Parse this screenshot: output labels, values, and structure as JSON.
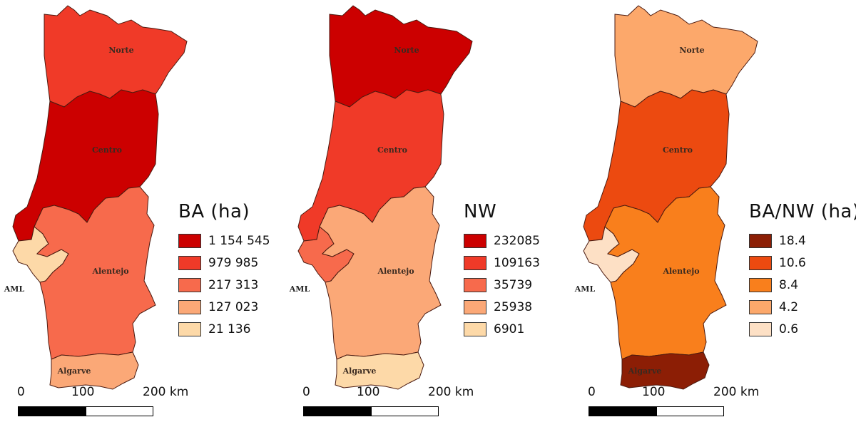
{
  "regions": {
    "norte": "Norte",
    "centro": "Centro",
    "alentejo": "Alentejo",
    "aml": "AML",
    "algarve": "Algarve"
  },
  "scale": {
    "tick0": "0",
    "tick1": "100",
    "tick2": "200 km"
  },
  "maps": [
    {
      "legend_title": "BA (ha)",
      "legend": [
        {
          "label": "1 154 545",
          "color": "#cc0000"
        },
        {
          "label": "979 985",
          "color": "#f03a28"
        },
        {
          "label": "217 313",
          "color": "#f76a4c"
        },
        {
          "label": "127 023",
          "color": "#fba877"
        },
        {
          "label": "21 136",
          "color": "#fdd9a8"
        }
      ],
      "fills": {
        "norte": "#f03a28",
        "centro": "#cc0000",
        "alentejo": "#f76a4c",
        "aml": "#fdd9a8",
        "algarve": "#fba877"
      }
    },
    {
      "legend_title": "NW",
      "legend": [
        {
          "label": "232085",
          "color": "#cc0000"
        },
        {
          "label": "109163",
          "color": "#f03a28"
        },
        {
          "label": "35739",
          "color": "#f76a4c"
        },
        {
          "label": "25938",
          "color": "#fba877"
        },
        {
          "label": "6901",
          "color": "#fdd9a8"
        }
      ],
      "fills": {
        "norte": "#cc0000",
        "centro": "#f03a28",
        "alentejo": "#fba877",
        "aml": "#f76a4c",
        "algarve": "#fdd9a8"
      }
    },
    {
      "legend_title": "BA/NW (ha)",
      "legend": [
        {
          "label": "18.4",
          "color": "#8c1e05"
        },
        {
          "label": "10.6",
          "color": "#ec4a10"
        },
        {
          "label": "8.4",
          "color": "#f97f1c"
        },
        {
          "label": "4.2",
          "color": "#fca86b"
        },
        {
          "label": "0.6",
          "color": "#fde0c5"
        }
      ],
      "fills": {
        "norte": "#fca86b",
        "centro": "#ec4a10",
        "alentejo": "#f97f1c",
        "aml": "#fde0c5",
        "algarve": "#8c1e05"
      }
    }
  ]
}
